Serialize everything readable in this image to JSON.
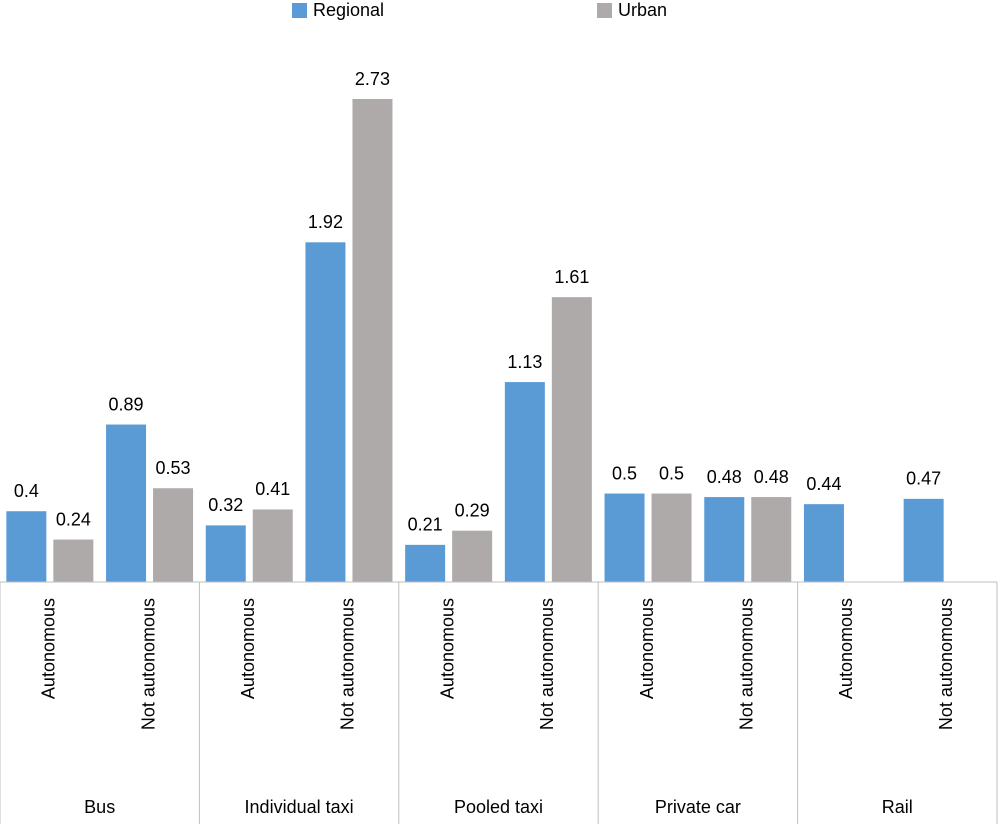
{
  "chart_data": {
    "type": "bar",
    "categories": [
      "Autonomous",
      "Not autonomous",
      "Autonomous",
      "Not autonomous",
      "Autonomous",
      "Not autonomous",
      "Autonomous",
      "Not autonomous",
      "Autonomous",
      "Not autonomous"
    ],
    "groups": [
      "Bus",
      "Individual taxi",
      "Pooled taxi",
      "Private car",
      "Rail"
    ],
    "series": [
      {
        "name": "Regional",
        "color": "#5b9bd5",
        "values": [
          0.4,
          0.89,
          0.32,
          1.92,
          0.21,
          1.13,
          0.5,
          0.48,
          0.44,
          0.47
        ]
      },
      {
        "name": "Urban",
        "color": "#aeaaaa",
        "values": [
          0.24,
          0.53,
          0.41,
          2.73,
          0.29,
          1.61,
          0.5,
          0.48,
          null,
          null
        ]
      }
    ],
    "legend": "top"
  }
}
